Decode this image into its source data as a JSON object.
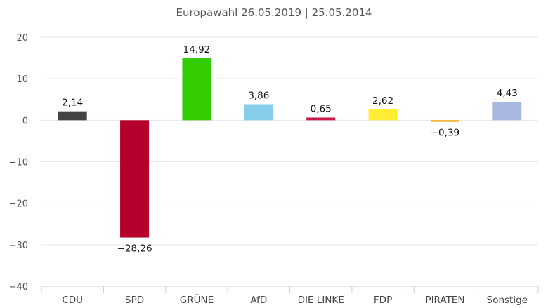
{
  "chart_data": {
    "type": "bar",
    "title": "Europawahl 26.05.2019 | 25.05.2014",
    "categories": [
      "CDU",
      "SPD",
      "GRÜNE",
      "AfD",
      "DIE LINKE",
      "FDP",
      "PIRATEN",
      "Sonstige"
    ],
    "values": [
      2.14,
      -28.26,
      14.92,
      3.86,
      0.65,
      2.62,
      -0.39,
      4.43
    ],
    "value_labels": [
      "2,14",
      "−28,26",
      "14,92",
      "3,86",
      "0,65",
      "2,62",
      "−0,39",
      "4,43"
    ],
    "colors": [
      "#444444",
      "#b5002b",
      "#33cc00",
      "#87ceeb",
      "#c8174b",
      "#ffed33",
      "#f0a500",
      "#a8b8e0"
    ],
    "ylim": [
      -40,
      20
    ],
    "yticks": [
      20,
      10,
      0,
      -10,
      -20,
      -30,
      -40
    ],
    "ytick_labels": [
      "20",
      "10",
      "0",
      "−10",
      "−20",
      "−30",
      "−40"
    ],
    "grid": true,
    "legend": "none",
    "xlabel": "",
    "ylabel": ""
  }
}
